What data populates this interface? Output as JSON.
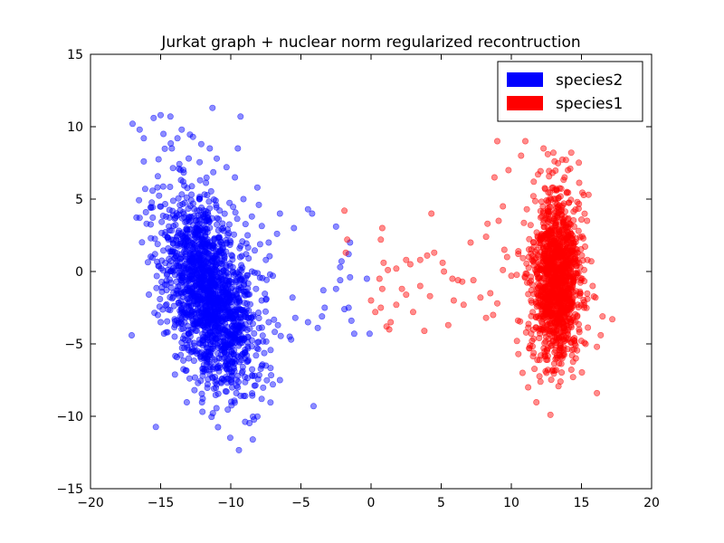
{
  "chart_data": {
    "type": "scatter",
    "title": "Jurkat graph + nuclear norm regularized recontruction",
    "xlabel": "",
    "ylabel": "",
    "xlim": [
      -20,
      20
    ],
    "ylim": [
      -15,
      15
    ],
    "xticks": [
      -20,
      -15,
      -10,
      -5,
      0,
      5,
      10,
      15,
      20
    ],
    "yticks": [
      -15,
      -10,
      -5,
      0,
      5,
      10,
      15
    ],
    "xtick_labels": [
      "−20",
      "−15",
      "−10",
      "−5",
      "0",
      "5",
      "10",
      "15",
      "20"
    ],
    "ytick_labels": [
      "−15",
      "−10",
      "−5",
      "0",
      "5",
      "10",
      "15"
    ],
    "grid": false,
    "legend_position": "top-right",
    "series": [
      {
        "name": "species2",
        "color": "#0000ff",
        "cluster": {
          "center": [
            -11.5,
            -1.5
          ],
          "spread": [
            1.5,
            3.3
          ],
          "count": 1700
        },
        "points": [
          [
            -17,
            10.2
          ],
          [
            -16.5,
            9.8
          ],
          [
            -16.2,
            9.2
          ],
          [
            -15.5,
            10.6
          ],
          [
            -15,
            10.8
          ],
          [
            -14.3,
            10.7
          ],
          [
            -13.5,
            9.8
          ],
          [
            -9.3,
            10.7
          ],
          [
            -11.3,
            11.3
          ],
          [
            -16.2,
            7.6
          ],
          [
            -16.1,
            5.7
          ],
          [
            -15.7,
            4.4
          ],
          [
            -16,
            3.3
          ],
          [
            -9.5,
            8.5
          ],
          [
            -8.1,
            5.8
          ],
          [
            -8,
            4.6
          ],
          [
            -6.5,
            4
          ],
          [
            -4.5,
            4.3
          ],
          [
            -4.2,
            4
          ],
          [
            -5.5,
            3
          ],
          [
            -6.7,
            2.6
          ],
          [
            -7.3,
            2
          ],
          [
            -7.5,
            0.8
          ],
          [
            -7,
            -0.3
          ],
          [
            -7.8,
            -2
          ],
          [
            -7.3,
            -3.5
          ],
          [
            -8.2,
            -5.8
          ],
          [
            -7.5,
            -6.5
          ],
          [
            -7,
            -7.8
          ],
          [
            -7.8,
            -8.8
          ],
          [
            -6.5,
            -7.5
          ],
          [
            -5.8,
            -4.5
          ],
          [
            -5.7,
            -4.7
          ],
          [
            -5.6,
            -1.8
          ],
          [
            -5.4,
            -3.2
          ],
          [
            -4.5,
            -3.5
          ],
          [
            -3.8,
            -3.9
          ],
          [
            -3.5,
            -3.1
          ],
          [
            -3.3,
            -2.5
          ],
          [
            -3.4,
            -1.3
          ],
          [
            -2.5,
            -1.2
          ],
          [
            -2.2,
            -0.6
          ],
          [
            -2.1,
            0.7
          ],
          [
            -1.5,
            2
          ],
          [
            -1.6,
            1.2
          ],
          [
            -1.5,
            -0.4
          ],
          [
            -1.6,
            -2.5
          ],
          [
            -1.4,
            -3.4
          ],
          [
            -1.2,
            -4.3
          ],
          [
            -1.9,
            -2.6
          ],
          [
            -0.3,
            -0.5
          ],
          [
            -0.1,
            -4.3
          ],
          [
            -2.5,
            3.1
          ],
          [
            -2.2,
            0.3
          ],
          [
            -10.5,
            -7.5
          ],
          [
            -9.5,
            -8
          ],
          [
            -11,
            -7.8
          ],
          [
            -12,
            -7.2
          ],
          [
            -13,
            -6
          ],
          [
            -14,
            -4.5
          ],
          [
            -14.6,
            -4.2
          ],
          [
            -15,
            -3.5
          ],
          [
            -14.7,
            -0.9
          ],
          [
            -15.4,
            1.2
          ],
          [
            -15.7,
            2.3
          ],
          [
            -14.8,
            9.5
          ],
          [
            -14.2,
            8.5
          ],
          [
            -13.8,
            9.2
          ],
          [
            -12.7,
            9.3
          ],
          [
            -12.1,
            8.8
          ],
          [
            -11.5,
            8.5
          ],
          [
            -11,
            7.8
          ],
          [
            -10.3,
            7.2
          ],
          [
            -9.7,
            6.5
          ],
          [
            -9.1,
            5
          ],
          [
            -8.5,
            3.8
          ],
          [
            -8.8,
            2.5
          ],
          [
            -8.9,
            1.2
          ],
          [
            -8.5,
            0
          ],
          [
            -8.2,
            -1.2
          ],
          [
            -8.4,
            -3
          ],
          [
            -8.8,
            -4.5
          ],
          [
            -9,
            -6
          ],
          [
            -9.2,
            -7
          ],
          [
            -8.3,
            -7.2
          ],
          [
            -4.1,
            -9.3
          ]
        ]
      },
      {
        "name": "species1",
        "color": "#ff0000",
        "cluster": {
          "center": [
            13.2,
            -0.5
          ],
          "spread": [
            0.85,
            2.9
          ],
          "count": 1300
        },
        "points": [
          [
            9,
            9
          ],
          [
            11,
            9
          ],
          [
            12.3,
            8.5
          ],
          [
            10.7,
            8
          ],
          [
            9.8,
            7
          ],
          [
            8.8,
            6.5
          ],
          [
            9.4,
            4.5
          ],
          [
            9.1,
            3.5
          ],
          [
            8.3,
            3.3
          ],
          [
            8.2,
            2.4
          ],
          [
            7.1,
            2
          ],
          [
            9.5,
            1.5
          ],
          [
            9.7,
            1
          ],
          [
            9.4,
            0.1
          ],
          [
            10,
            -0.3
          ],
          [
            8.5,
            -1.5
          ],
          [
            9,
            -2.2
          ],
          [
            8.7,
            -3
          ],
          [
            8.2,
            -3.2
          ],
          [
            10.4,
            -4.8
          ],
          [
            10.5,
            -5.7
          ],
          [
            11.3,
            -5.3
          ],
          [
            10.8,
            -7
          ],
          [
            11.2,
            -8
          ],
          [
            12.5,
            -7
          ],
          [
            13.5,
            -7.6
          ],
          [
            15.3,
            -5
          ],
          [
            16.1,
            -8.4
          ],
          [
            16.1,
            -5.2
          ],
          [
            16.5,
            -3.1
          ],
          [
            17.2,
            -3.3
          ],
          [
            15.8,
            -1
          ],
          [
            16,
            -1.8
          ],
          [
            15.7,
            0.7
          ],
          [
            15.4,
            3.5
          ],
          [
            15.5,
            5.3
          ],
          [
            14.7,
            4.8
          ],
          [
            14.2,
            7.1
          ],
          [
            13.9,
            7.7
          ],
          [
            13,
            8.2
          ],
          [
            12.6,
            8.1
          ],
          [
            11.9,
            6.7
          ],
          [
            11.6,
            6.2
          ],
          [
            11.1,
            4.3
          ],
          [
            10.5,
            1.4
          ],
          [
            14.5,
            -4.8
          ],
          [
            15.2,
            -2.5
          ],
          [
            14.6,
            -6
          ],
          [
            13.2,
            -6.8
          ],
          [
            12.1,
            -5.8
          ],
          [
            -1.9,
            4.2
          ],
          [
            -1.7,
            2.2
          ],
          [
            -1.8,
            1.3
          ],
          [
            0.8,
            3
          ],
          [
            0.7,
            2.2
          ],
          [
            0.9,
            0.6
          ],
          [
            0.6,
            -0.5
          ],
          [
            0.8,
            -1.2
          ],
          [
            0.7,
            -2.5
          ],
          [
            0.3,
            -2.8
          ],
          [
            0,
            -2
          ],
          [
            1.4,
            -3.5
          ],
          [
            1.3,
            -4
          ],
          [
            1.1,
            -3.8
          ],
          [
            1.8,
            -2.3
          ],
          [
            1.8,
            0.2
          ],
          [
            1.2,
            0.1
          ],
          [
            2.5,
            0.8
          ],
          [
            2.8,
            0.5
          ],
          [
            2.5,
            -1.6
          ],
          [
            3,
            -2.8
          ],
          [
            3.8,
            -4.1
          ],
          [
            4.3,
            4
          ],
          [
            4,
            1.1
          ],
          [
            3.5,
            0.8
          ],
          [
            4.5,
            1.3
          ],
          [
            5.1,
            0.6
          ],
          [
            5.2,
            0
          ],
          [
            5.8,
            -0.5
          ],
          [
            6.2,
            -0.6
          ],
          [
            6.5,
            -0.7
          ],
          [
            7.3,
            -0.6
          ],
          [
            5.9,
            -2
          ],
          [
            5.5,
            -3.7
          ],
          [
            4.2,
            -1.7
          ],
          [
            3.5,
            -1
          ],
          [
            2.2,
            -1.2
          ],
          [
            7.8,
            -1.8
          ],
          [
            6.6,
            -2.3
          ]
        ]
      }
    ]
  }
}
